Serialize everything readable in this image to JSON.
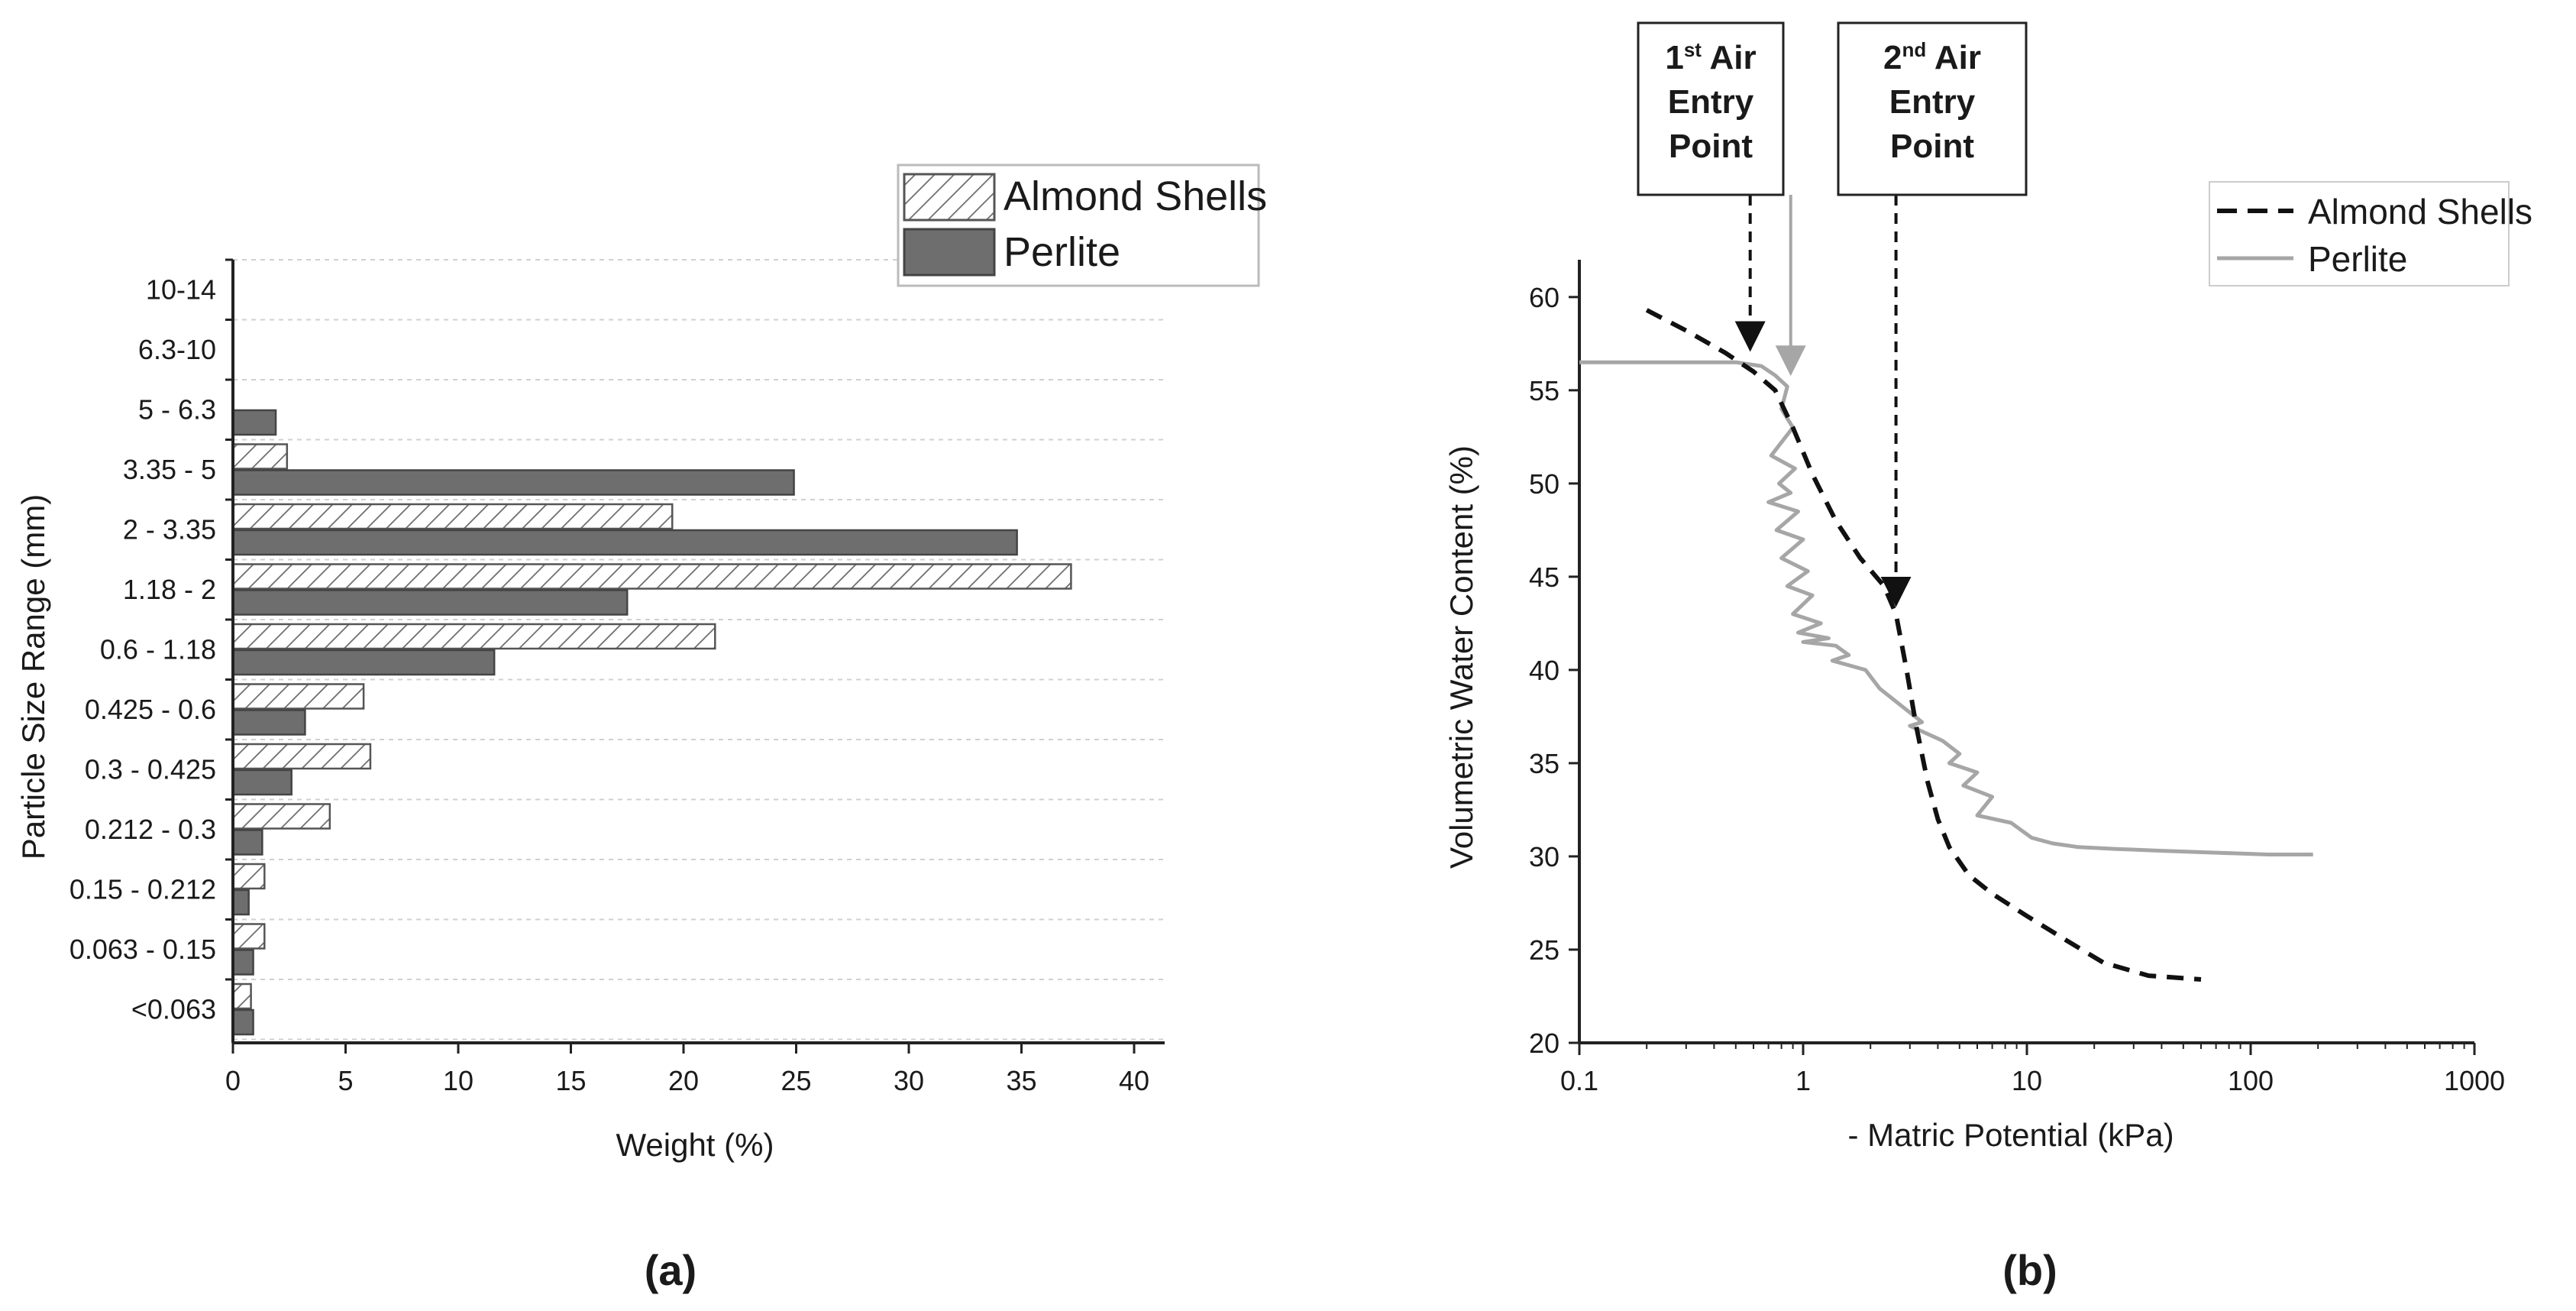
{
  "panels": {
    "a": {
      "label": "(a)"
    },
    "b": {
      "label": "(b)"
    }
  },
  "colors": {
    "perlite_bar": "#6e6e6e",
    "hatch": "#6a6a6a",
    "almond_line": "#111111",
    "perlite_line": "#a6a6a6",
    "axis": "#222222",
    "grid": "#d0d0d0"
  },
  "chart_data": [
    {
      "id": "a",
      "type": "bar",
      "orientation": "horizontal",
      "title": "",
      "xlabel": "Weight (%)",
      "ylabel": "Particle Size Range (mm)",
      "xlim": [
        0,
        41
      ],
      "xticks": [
        0,
        5,
        10,
        15,
        20,
        25,
        30,
        35,
        40
      ],
      "grid": true,
      "legend_position": "top-right",
      "categories": [
        "10-14",
        "6.3-10",
        "5 - 6.3",
        "3.35 - 5",
        "2 - 3.35",
        "1.18 - 2",
        "0.6 - 1.18",
        "0.425 - 0.6",
        "0.3 - 0.425",
        "0.212 - 0.3",
        "0.15 - 0.212",
        "0.063 - 0.15",
        "<0.063"
      ],
      "series": [
        {
          "name": "Almond Shells",
          "pattern": "hatched",
          "values": [
            0,
            0,
            0,
            2.4,
            19.5,
            37.2,
            21.4,
            5.8,
            6.1,
            4.3,
            1.4,
            1.4,
            0.8
          ]
        },
        {
          "name": "Perlite",
          "pattern": "solid",
          "values": [
            0,
            0,
            1.9,
            24.9,
            34.8,
            17.5,
            11.6,
            3.2,
            2.6,
            1.3,
            0.7,
            0.9,
            0.9
          ]
        }
      ]
    },
    {
      "id": "b",
      "type": "line",
      "title": "",
      "xlabel": "- Matric Potential (kPa)",
      "ylabel": "Volumetric Water Content (%)",
      "xscale": "log",
      "xlim": [
        0.1,
        1000
      ],
      "ylim": [
        20,
        62
      ],
      "xticks": [
        0.1,
        1,
        10,
        100,
        1000
      ],
      "xtick_labels": [
        "0.1",
        "1",
        "10",
        "100",
        "1000"
      ],
      "yticks": [
        20,
        25,
        30,
        35,
        40,
        45,
        50,
        55,
        60
      ],
      "grid": false,
      "legend_position": "top-right",
      "series": [
        {
          "name": "Almond Shells",
          "style": "dashed",
          "x": [
            0.2,
            0.3,
            0.45,
            0.6,
            0.75,
            0.9,
            1.1,
            1.4,
            1.8,
            2.3,
            2.6,
            2.9,
            3.2,
            3.6,
            4.0,
            4.5,
            5.5,
            7,
            10,
            15,
            22,
            35,
            60
          ],
          "y": [
            59.3,
            58.2,
            57.0,
            56.0,
            55.0,
            53.0,
            50.5,
            48.0,
            46.0,
            44.5,
            43.0,
            40.0,
            37.0,
            34.0,
            32.0,
            30.5,
            29.0,
            28.0,
            26.8,
            25.5,
            24.3,
            23.6,
            23.4
          ]
        },
        {
          "name": "Perlite",
          "style": "solid",
          "x": [
            0.1,
            0.5,
            0.65,
            0.75,
            0.85,
            0.8,
            0.9,
            0.72,
            0.92,
            0.78,
            0.88,
            0.7,
            0.95,
            0.76,
            1.0,
            0.8,
            1.05,
            0.85,
            1.1,
            0.9,
            1.2,
            0.95,
            1.3,
            1.0,
            1.4,
            1.6,
            1.35,
            1.9,
            2.2,
            2.8,
            3.4,
            3.0,
            4.2,
            5.0,
            4.5,
            6.0,
            5.2,
            7.0,
            6.0,
            8.5,
            10.5,
            13,
            17,
            25,
            40,
            70,
            120,
            190
          ],
          "y": [
            56.5,
            56.5,
            56.3,
            55.8,
            55.2,
            54.0,
            53.0,
            51.5,
            50.8,
            50.0,
            49.5,
            49.0,
            48.5,
            47.5,
            47.0,
            46.0,
            45.3,
            44.5,
            44.0,
            43.0,
            42.5,
            42.0,
            41.7,
            41.5,
            41.3,
            40.8,
            40.5,
            40.0,
            39.0,
            38.0,
            37.2,
            37.0,
            36.2,
            35.5,
            35.0,
            34.5,
            33.8,
            33.2,
            32.2,
            31.8,
            31.0,
            30.7,
            30.5,
            30.4,
            30.3,
            30.2,
            30.1,
            30.1
          ]
        }
      ],
      "annotations": [
        {
          "line1": "1",
          "sup": "st",
          "line1_rest": " Air",
          "line2": "Entry",
          "line3": "Point",
          "arrows": [
            {
              "series": "Almond Shells",
              "x": 0.58,
              "y": 56.9
            },
            {
              "series": "Perlite",
              "x": 0.88,
              "y": 55.6
            }
          ]
        },
        {
          "line1": "2",
          "sup": "nd",
          "line1_rest": " Air",
          "line2": "Entry",
          "line3": "Point",
          "arrows": [
            {
              "series": "Almond Shells",
              "x": 2.6,
              "y": 43.2
            }
          ]
        }
      ]
    }
  ]
}
